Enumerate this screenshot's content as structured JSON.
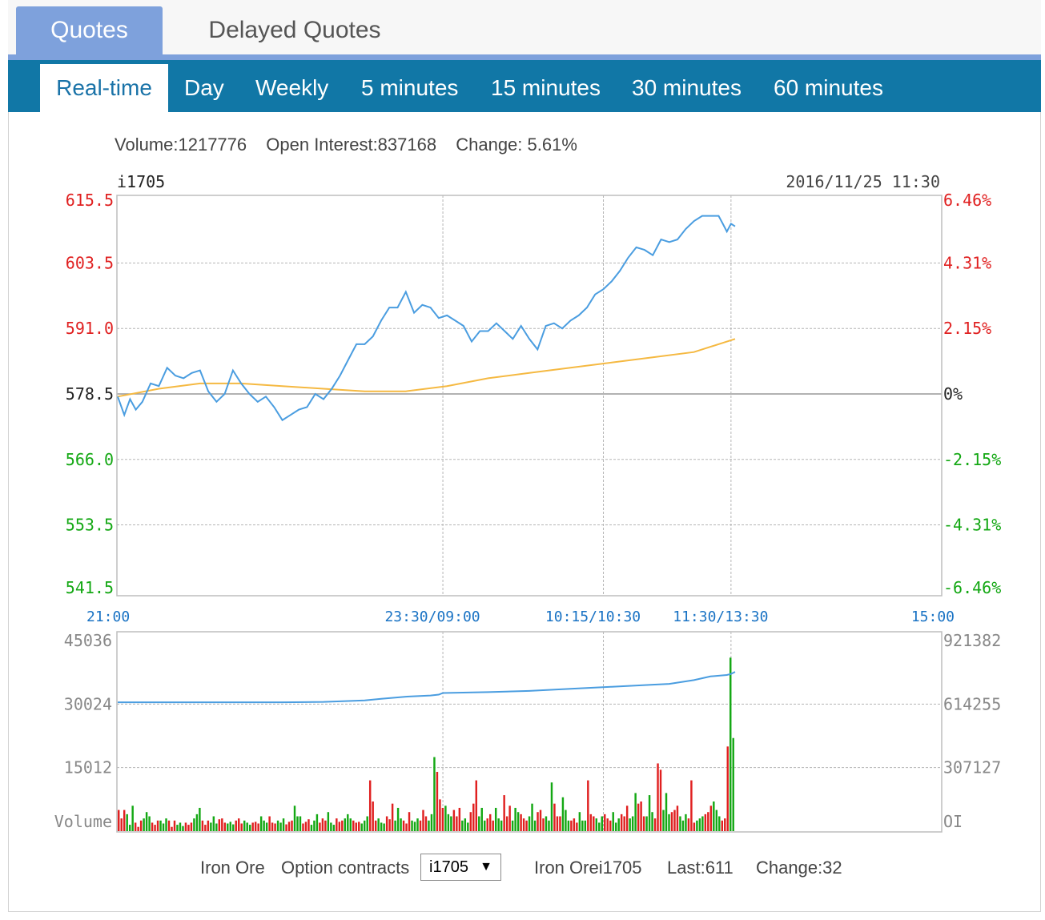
{
  "tabs": [
    {
      "label": "Quotes",
      "active": true
    },
    {
      "label": "Delayed Quotes",
      "active": false
    }
  ],
  "subtabs": [
    {
      "label": "Real-time",
      "active": true
    },
    {
      "label": "Day"
    },
    {
      "label": "Weekly"
    },
    {
      "label": "5 minutes"
    },
    {
      "label": "15 minutes"
    },
    {
      "label": "30 minutes"
    },
    {
      "label": "60 minutes"
    }
  ],
  "stats": {
    "volume": "Volume:1217776",
    "open_interest": "Open Interest:837168",
    "change": "Change: 5.61%"
  },
  "footer": {
    "commodity": "Iron Ore",
    "option_label": "Option contracts",
    "selected_contract": "i1705",
    "contract_name": "Iron Orei1705",
    "last": "Last:611",
    "change": "Change:32"
  },
  "colors": {
    "accent": "#7ea1dc",
    "nav": "#1177a6",
    "price_line": "#4a9de0",
    "avg_line": "#f5b942",
    "up": "#e02020",
    "down": "#14a814",
    "neutral": "#222222",
    "axis_text": "#888888",
    "time_text": "#1a73c4"
  },
  "chart_data": [
    {
      "type": "line",
      "symbol": "i1705",
      "timestamp": "2016/11/25 11:30",
      "y_ticks": [
        "615.5",
        "603.5",
        "591.0",
        "578.5",
        "566.0",
        "553.5",
        "541.5"
      ],
      "y_tick_values": [
        615.5,
        603.5,
        591.0,
        578.5,
        566.0,
        553.5,
        541.5
      ],
      "pct_ticks": [
        "6.46%",
        "4.31%",
        "2.15%",
        "0%",
        "-2.15%",
        "-4.31%",
        "-6.46%"
      ],
      "ylim": [
        541.5,
        615.5
      ],
      "reference_price": 578.5,
      "x_ticks": [
        "21:00",
        "23:30/09:00",
        "10:15/10:30",
        "11:30/13:30",
        "15:00"
      ],
      "x_tick_positions": [
        0,
        0.395,
        0.59,
        0.745,
        1.0
      ],
      "grid": true,
      "series": [
        {
          "role": "price",
          "x": [
            0,
            0.008,
            0.015,
            0.022,
            0.03,
            0.04,
            0.05,
            0.06,
            0.07,
            0.08,
            0.09,
            0.1,
            0.11,
            0.12,
            0.13,
            0.14,
            0.15,
            0.16,
            0.17,
            0.18,
            0.19,
            0.2,
            0.21,
            0.22,
            0.23,
            0.24,
            0.25,
            0.26,
            0.27,
            0.28,
            0.29,
            0.3,
            0.31,
            0.32,
            0.33,
            0.34,
            0.35,
            0.36,
            0.37,
            0.38,
            0.39,
            0.4,
            0.41,
            0.42,
            0.43,
            0.44,
            0.45,
            0.46,
            0.47,
            0.48,
            0.49,
            0.5,
            0.51,
            0.52,
            0.53,
            0.54,
            0.55,
            0.56,
            0.57,
            0.58,
            0.59,
            0.6,
            0.61,
            0.62,
            0.63,
            0.64,
            0.65,
            0.66,
            0.67,
            0.68,
            0.69,
            0.7,
            0.71,
            0.72,
            0.725,
            0.73,
            0.735,
            0.74,
            0.745,
            0.75
          ],
          "values": [
            578,
            574.5,
            577.5,
            575.5,
            577,
            580.5,
            580,
            583.5,
            582,
            581.5,
            582.5,
            583,
            579,
            577,
            578.5,
            583,
            580.5,
            578.5,
            577,
            578,
            576,
            573.5,
            574.5,
            575.5,
            576,
            578.5,
            577.5,
            579.5,
            582,
            585,
            588,
            588,
            589.5,
            592.5,
            595,
            595,
            598,
            594,
            595.5,
            595,
            593,
            593.5,
            592.5,
            591.5,
            588.5,
            590.5,
            590.5,
            592,
            590.5,
            589,
            591.5,
            589,
            587,
            591.5,
            592,
            591,
            592.5,
            593.5,
            595,
            597.5,
            598.5,
            600,
            602,
            604.5,
            606.5,
            606,
            605,
            608,
            607.5,
            608,
            610,
            611.5,
            612.5,
            612.5,
            612.5,
            612.5,
            611,
            609.5,
            611,
            610.5
          ]
        },
        {
          "role": "average",
          "x": [
            0,
            0.05,
            0.1,
            0.15,
            0.2,
            0.25,
            0.3,
            0.35,
            0.4,
            0.45,
            0.5,
            0.55,
            0.6,
            0.65,
            0.7,
            0.75
          ],
          "values": [
            578,
            579.5,
            580.5,
            580.5,
            580,
            579.5,
            579,
            579,
            580,
            581.5,
            582.5,
            583.5,
            584.5,
            585.5,
            586.5,
            589
          ]
        }
      ]
    },
    {
      "type": "bar",
      "label": "Volume",
      "ylim": [
        0,
        45036
      ],
      "y_ticks": [
        "45036",
        "30024",
        "15012"
      ],
      "oi_ticks": [
        "921382",
        "614255",
        "307127"
      ],
      "oi_label": "OI",
      "oi_lim": [
        0,
        921382
      ],
      "volume_bars": {
        "x_range": [
          0,
          0.75
        ],
        "values": [
          5000,
          3000,
          5000,
          4000,
          1500,
          6000,
          2000,
          1000,
          2500,
          3000,
          4500,
          3500,
          2000,
          1500,
          2500,
          2500,
          1800,
          3000,
          2500,
          1000,
          2500,
          1500,
          2000,
          1200,
          2000,
          1500,
          2000,
          3000,
          4000,
          5500,
          2500,
          1500,
          2500,
          2000,
          3500,
          1800,
          2800,
          3000,
          2000,
          1800,
          2200,
          1600,
          2500,
          3000,
          1800,
          2500,
          2000,
          1500,
          2000,
          2200,
          1800,
          3500,
          2500,
          2000,
          3500,
          2000,
          1800,
          2500,
          2000,
          3000,
          1600,
          2200,
          2500,
          6000,
          3500,
          3500,
          1800,
          2200,
          2800,
          1500,
          2500,
          4000,
          2000,
          3000,
          2500,
          4500,
          2000,
          1500,
          3000,
          2200,
          2500,
          3000,
          4000,
          3000,
          2500,
          2000,
          2200,
          1800,
          2500,
          3500,
          12000,
          7000,
          2500,
          3000,
          2000,
          1800,
          3500,
          2800,
          6500,
          2500,
          5500,
          3000,
          2500,
          1800,
          4500,
          2500,
          2200,
          3000,
          2500,
          5000,
          3500,
          2500,
          4000,
          17500,
          14000,
          7500,
          5500,
          6000,
          4000,
          3500,
          5000,
          3500,
          5500,
          2500,
          3000,
          2000,
          4500,
          6500,
          12000,
          3500,
          5500,
          2500,
          3000,
          4000,
          2500,
          5500,
          3000,
          2500,
          8500,
          3500,
          6000,
          2500,
          5500,
          4500,
          4000,
          3000,
          2500,
          3500,
          6500,
          2500,
          4500,
          5000,
          3000,
          3500,
          2500,
          11500,
          6500,
          3500,
          3500,
          8000,
          5000,
          2500,
          2500,
          3000,
          2000,
          4500,
          2500,
          2500,
          12000,
          4000,
          3500,
          3000,
          2000,
          3500,
          4000,
          3000,
          2500,
          4500,
          2000,
          3000,
          4000,
          3500,
          6000,
          3000,
          3500,
          9000,
          6500,
          7000,
          3500,
          3500,
          8500,
          4500,
          3000,
          16000,
          14500,
          5000,
          9000,
          4000,
          4500,
          5000,
          6000,
          3500,
          2500,
          4000,
          3000,
          12000,
          2000,
          2500,
          3000,
          3500,
          4000,
          4500,
          6000,
          7000,
          5000,
          3500,
          2500,
          3000,
          20000,
          41000,
          22000
        ],
        "up_pattern": "alternating"
      },
      "oi_line": {
        "x": [
          0,
          0.05,
          0.1,
          0.15,
          0.2,
          0.25,
          0.3,
          0.32,
          0.35,
          0.38,
          0.39,
          0.395,
          0.45,
          0.5,
          0.55,
          0.6,
          0.65,
          0.67,
          0.7,
          0.72,
          0.74,
          0.745,
          0.75
        ],
        "values": [
          623000,
          623000,
          623000,
          623000,
          623000,
          625000,
          632000,
          640000,
          650000,
          656000,
          660000,
          668000,
          672000,
          678000,
          688000,
          698000,
          708000,
          712000,
          730000,
          748000,
          755000,
          760000,
          770000
        ]
      }
    }
  ]
}
